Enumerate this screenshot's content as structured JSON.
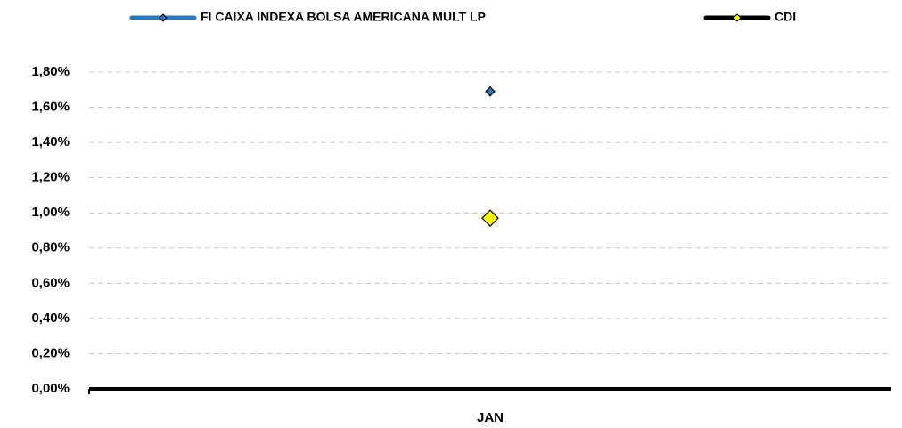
{
  "chart_data": {
    "type": "line",
    "categories": [
      "JAN"
    ],
    "series": [
      {
        "name": "FI CAIXA INDEXA BOLSA AMERICANA MULT LP",
        "color": "#2e75b6",
        "marker_fill": "#2e75b6",
        "values": [
          1.69
        ]
      },
      {
        "name": "CDI",
        "color": "#000000",
        "marker_fill": "#ffff00",
        "values": [
          0.97
        ]
      }
    ],
    "ylim": [
      0,
      1.8
    ],
    "yticks": [
      {
        "value": 0,
        "label": "0,00%"
      },
      {
        "value": 0.2,
        "label": "0,20%"
      },
      {
        "value": 0.4,
        "label": "0,40%"
      },
      {
        "value": 0.6,
        "label": "0,60%"
      },
      {
        "value": 0.8,
        "label": "0,80%"
      },
      {
        "value": 1.0,
        "label": "1,00%"
      },
      {
        "value": 1.2,
        "label": "1,20%"
      },
      {
        "value": 1.4,
        "label": "1,40%"
      },
      {
        "value": 1.6,
        "label": "1,60%"
      },
      {
        "value": 1.8,
        "label": "1,80%"
      }
    ],
    "grid": true,
    "legend": "top"
  }
}
